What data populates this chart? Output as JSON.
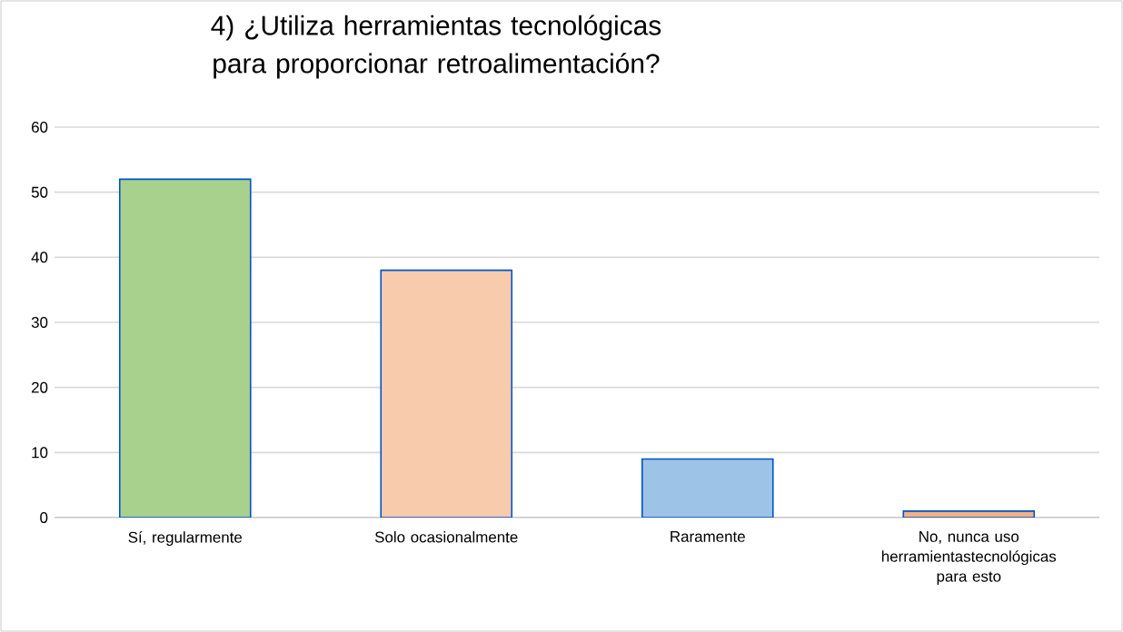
{
  "chart_data": {
    "type": "bar",
    "title": "4) ¿Utiliza herramientas tecnológicas para proporcionar retroalimentación?",
    "categories": [
      "Sí, regularmente",
      "Solo ocasionalmente",
      "Raramente",
      "No, nunca uso herramientastecnológicas para esto"
    ],
    "values": [
      52,
      38,
      9,
      1
    ],
    "colors": [
      "#a9d18e",
      "#f8cbad",
      "#9dc3e6",
      "#f4b183"
    ],
    "ylim": [
      0,
      60
    ],
    "yticks": [
      0,
      10,
      20,
      30,
      40,
      50,
      60
    ],
    "grid": "y"
  }
}
